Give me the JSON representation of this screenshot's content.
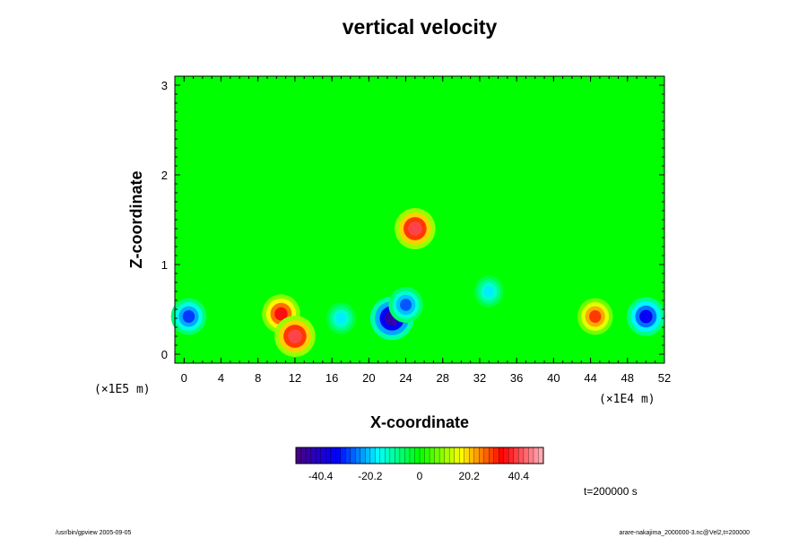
{
  "chart_data": {
    "type": "heatmap",
    "title": "vertical velocity",
    "xlabel": "X-coordinate",
    "ylabel": "Z-coordinate",
    "x_scale_label": "(×1E4 m)",
    "y_scale_label": "(×1E5 m)",
    "xlim": [
      -1,
      52
    ],
    "ylim": [
      -0.1,
      3.1
    ],
    "x_ticks": [
      0,
      4,
      8,
      12,
      16,
      20,
      24,
      28,
      32,
      36,
      40,
      44,
      48,
      52
    ],
    "y_ticks": [
      0,
      1,
      2,
      3
    ],
    "background_value": 0,
    "features": [
      {
        "x": 0.5,
        "z": 0.42,
        "value": -30
      },
      {
        "x": 10.5,
        "z": 0.45,
        "value": 35
      },
      {
        "x": 12.0,
        "z": 0.2,
        "value": 40
      },
      {
        "x": 17.0,
        "z": 0.4,
        "value": -18
      },
      {
        "x": 22.5,
        "z": 0.4,
        "value": -45
      },
      {
        "x": 24.0,
        "z": 0.55,
        "value": -28
      },
      {
        "x": 25.0,
        "z": 1.4,
        "value": 40
      },
      {
        "x": 33.0,
        "z": 0.7,
        "value": -18
      },
      {
        "x": 44.5,
        "z": 0.42,
        "value": 30
      },
      {
        "x": 50.0,
        "z": 0.42,
        "value": -35
      }
    ],
    "colorbar": {
      "ticks": [
        -40.4,
        -20.2,
        0,
        20.2,
        40.4
      ],
      "tick_labels": [
        "-40.4",
        "-20.2",
        "0",
        "20.2",
        "40.4"
      ],
      "range": [
        -50.5,
        50.5
      ],
      "colors": [
        "#4b0082",
        "#0000ff",
        "#00ffff",
        "#00ff00",
        "#ffff00",
        "#ff0000",
        "#ffb6c1"
      ]
    },
    "annotation": "t=200000 s"
  },
  "footer": {
    "left": "/usr/bin/gpview 2005-09-05",
    "right": "arare-nakajima_2000000-3.nc@Vel2,t=200000"
  }
}
